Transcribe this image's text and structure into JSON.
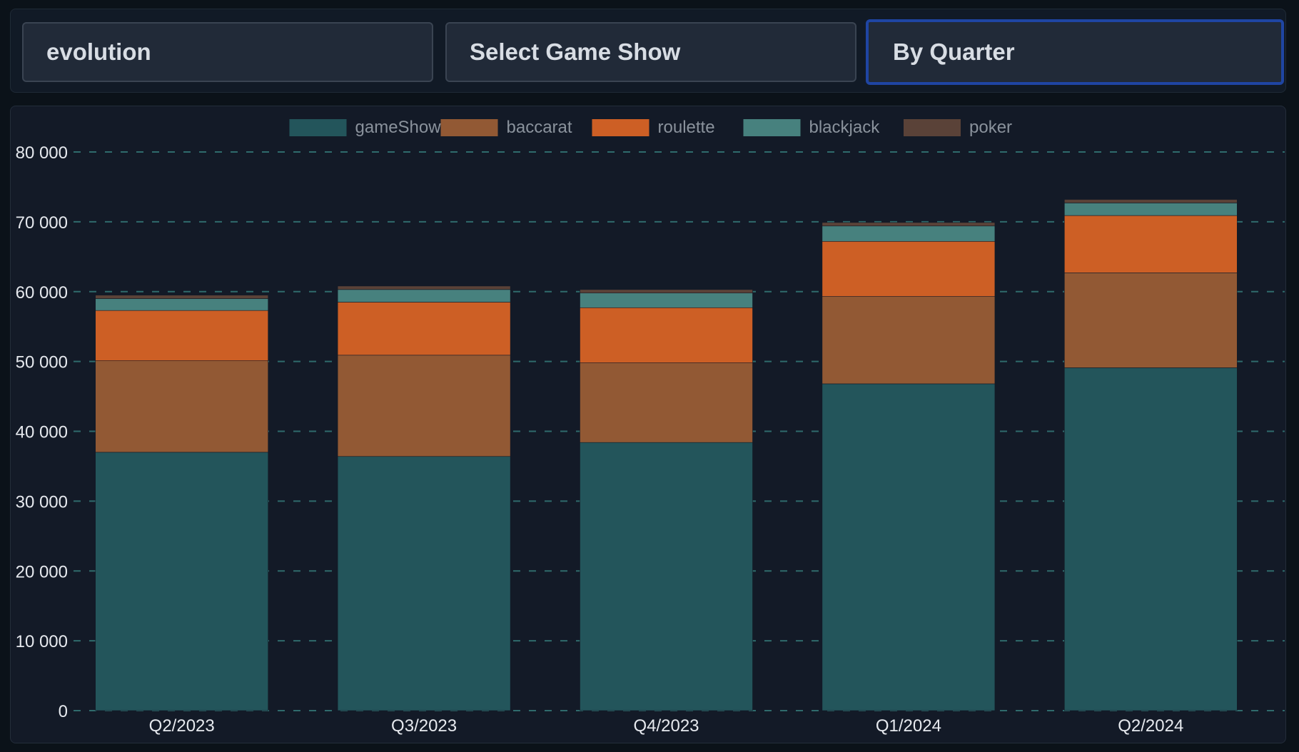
{
  "filters": {
    "provider": "evolution",
    "game_show": "Select Game Show",
    "grouping": "By Quarter"
  },
  "colors": {
    "gameShow": "#23555b",
    "baccarat": "#925934",
    "roulette": "#cd5f25",
    "blackjack": "#47817e",
    "poker": "#5a4238",
    "grid": "#2f6b6c",
    "axis_text": "#e6e9ee",
    "legend_text": "#8a929c"
  },
  "chart_data": {
    "type": "bar",
    "stacked": true,
    "categories": [
      "Q2/2023",
      "Q3/2023",
      "Q4/2023",
      "Q1/2024",
      "Q2/2024"
    ],
    "series": [
      {
        "name": "gameShow",
        "values": [
          37000,
          36400,
          38400,
          46800,
          49100
        ]
      },
      {
        "name": "baccarat",
        "values": [
          13100,
          14500,
          11400,
          12500,
          13600
        ]
      },
      {
        "name": "roulette",
        "values": [
          7200,
          7600,
          7900,
          7900,
          8200
        ]
      },
      {
        "name": "blackjack",
        "values": [
          1700,
          1800,
          2100,
          2200,
          1800
        ]
      },
      {
        "name": "poker",
        "values": [
          500,
          500,
          500,
          500,
          500
        ]
      }
    ],
    "ylim": [
      0,
      80000
    ],
    "yticks": [
      0,
      10000,
      20000,
      30000,
      40000,
      50000,
      60000,
      70000,
      80000
    ],
    "ytick_labels": [
      "0",
      "10 000",
      "20 000",
      "30 000",
      "40 000",
      "50 000",
      "60 000",
      "70 000",
      "80 000"
    ],
    "grid": "horizontal dashed",
    "legend": "top-center",
    "title": "",
    "xlabel": "",
    "ylabel": ""
  }
}
